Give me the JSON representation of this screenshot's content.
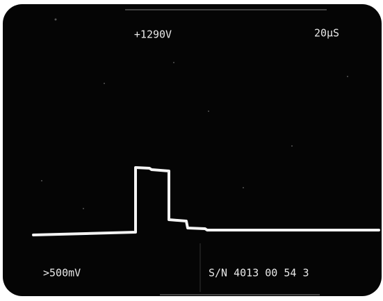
{
  "header": {
    "voltage": "+1290V",
    "timebase": "20µS"
  },
  "footer": {
    "scale": ">500mV",
    "serial": "S/N 4013 00 54 3"
  }
}
